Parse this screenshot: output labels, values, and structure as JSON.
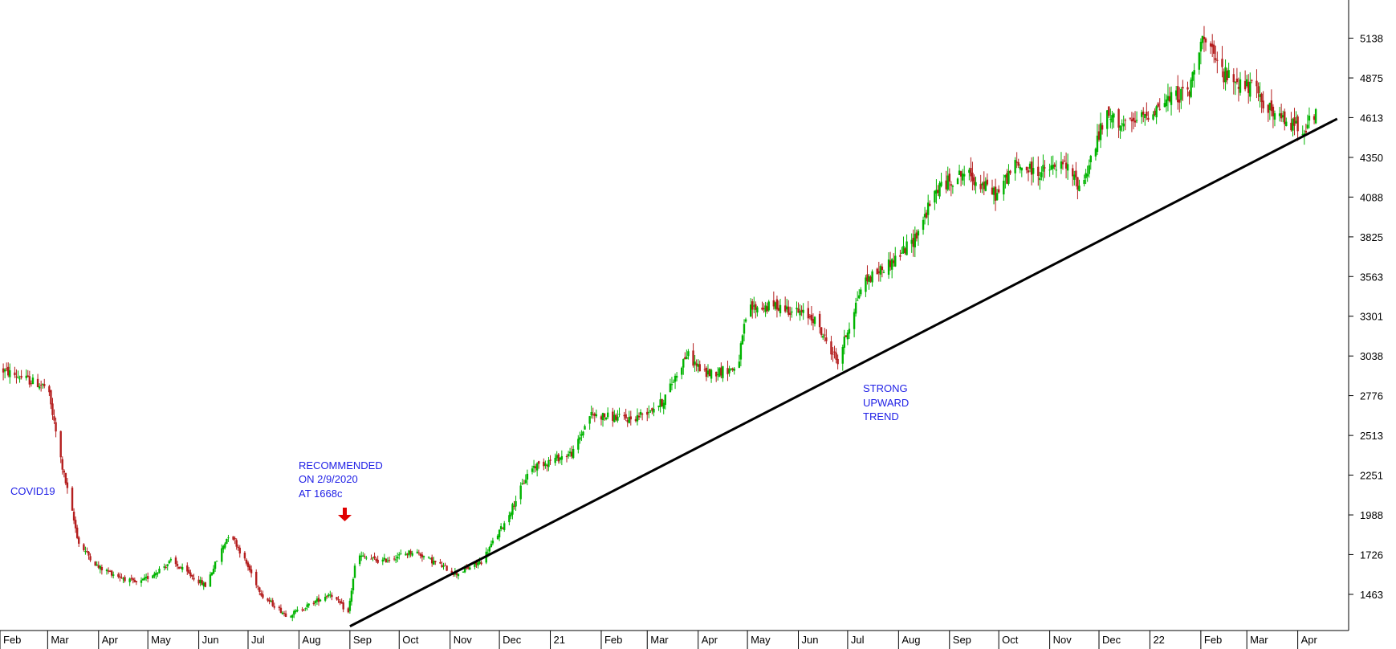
{
  "chart_data": {
    "type": "candlestick",
    "title": "",
    "xlabel": "",
    "ylabel": "",
    "ylim": [
      1240,
      5390
    ],
    "y_ticks": [
      "5138",
      "4875",
      "4613",
      "4350",
      "4088",
      "3825",
      "3563",
      "3301",
      "3038",
      "2776",
      "2513",
      "2251",
      "1988",
      "1726",
      "1463"
    ],
    "x_ticks": [
      "Feb",
      "Mar",
      "Apr",
      "May",
      "Jun",
      "Jul",
      "Aug",
      "Sep",
      "Oct",
      "Nov",
      "Dec",
      "21",
      "Feb",
      "Mar",
      "Apr",
      "May",
      "Jun",
      "Jul",
      "Aug",
      "Sep",
      "Oct",
      "Nov",
      "Dec",
      "22",
      "Feb",
      "Mar",
      "Apr"
    ],
    "series": [
      {
        "kind": "price-close-approx",
        "x": [
          "2020-02-01",
          "2020-03-01",
          "2020-03-10",
          "2020-03-20",
          "2020-04-01",
          "2020-04-25",
          "2020-05-15",
          "2020-06-05",
          "2020-06-20",
          "2020-07-10",
          "2020-07-25",
          "2020-08-05",
          "2020-08-20",
          "2020-08-31",
          "2020-09-05",
          "2020-09-20",
          "2020-10-10",
          "2020-10-25",
          "2020-11-05",
          "2020-11-20",
          "2020-12-05",
          "2020-12-20",
          "2021-01-15",
          "2021-01-25",
          "2021-02-20",
          "2021-03-10",
          "2021-03-25",
          "2021-04-05",
          "2021-04-25",
          "2021-05-01",
          "2021-05-20",
          "2021-06-10",
          "2021-06-25",
          "2021-07-10",
          "2021-07-30",
          "2021-08-10",
          "2021-08-25",
          "2021-09-10",
          "2021-09-30",
          "2021-10-10",
          "2021-10-25",
          "2021-11-10",
          "2021-11-20",
          "2021-12-05",
          "2021-12-20",
          "2022-01-15",
          "2022-01-25",
          "2022-02-01",
          "2022-02-15",
          "2022-03-05",
          "2022-03-20",
          "2022-04-05",
          "2022-04-12"
        ],
        "values": [
          2950,
          2830,
          2300,
          1800,
          1640,
          1530,
          1680,
          1520,
          1880,
          1450,
          1320,
          1380,
          1470,
          1340,
          1720,
          1680,
          1750,
          1660,
          1600,
          1680,
          1950,
          2300,
          2400,
          2650,
          2620,
          2730,
          3050,
          2920,
          2960,
          3350,
          3370,
          3290,
          3000,
          3520,
          3680,
          3800,
          4150,
          4250,
          4100,
          4300,
          4250,
          4300,
          4150,
          4620,
          4560,
          4750,
          4780,
          5150,
          4900,
          4800,
          4600,
          4550,
          4620
        ]
      }
    ],
    "trendline": {
      "x": [
        "2020-09-01",
        "2022-04-25"
      ],
      "y": [
        1252,
        4605
      ]
    },
    "annotations": {
      "covid": "COVID19",
      "rec_line1": "RECOMMENDED",
      "rec_line2": "ON 2/9/2020",
      "rec_line3": "AT 1668c",
      "trend_line1": "STRONG",
      "trend_line2": "UPWARD",
      "trend_line3": "TREND"
    },
    "colors": {
      "up": "#00b400",
      "down": "#b41e1e",
      "trendline": "#000000",
      "annotation": "#1f1fe6",
      "arrow": "#e00000",
      "axis": "#000000"
    },
    "grid": false,
    "legend": "none"
  }
}
